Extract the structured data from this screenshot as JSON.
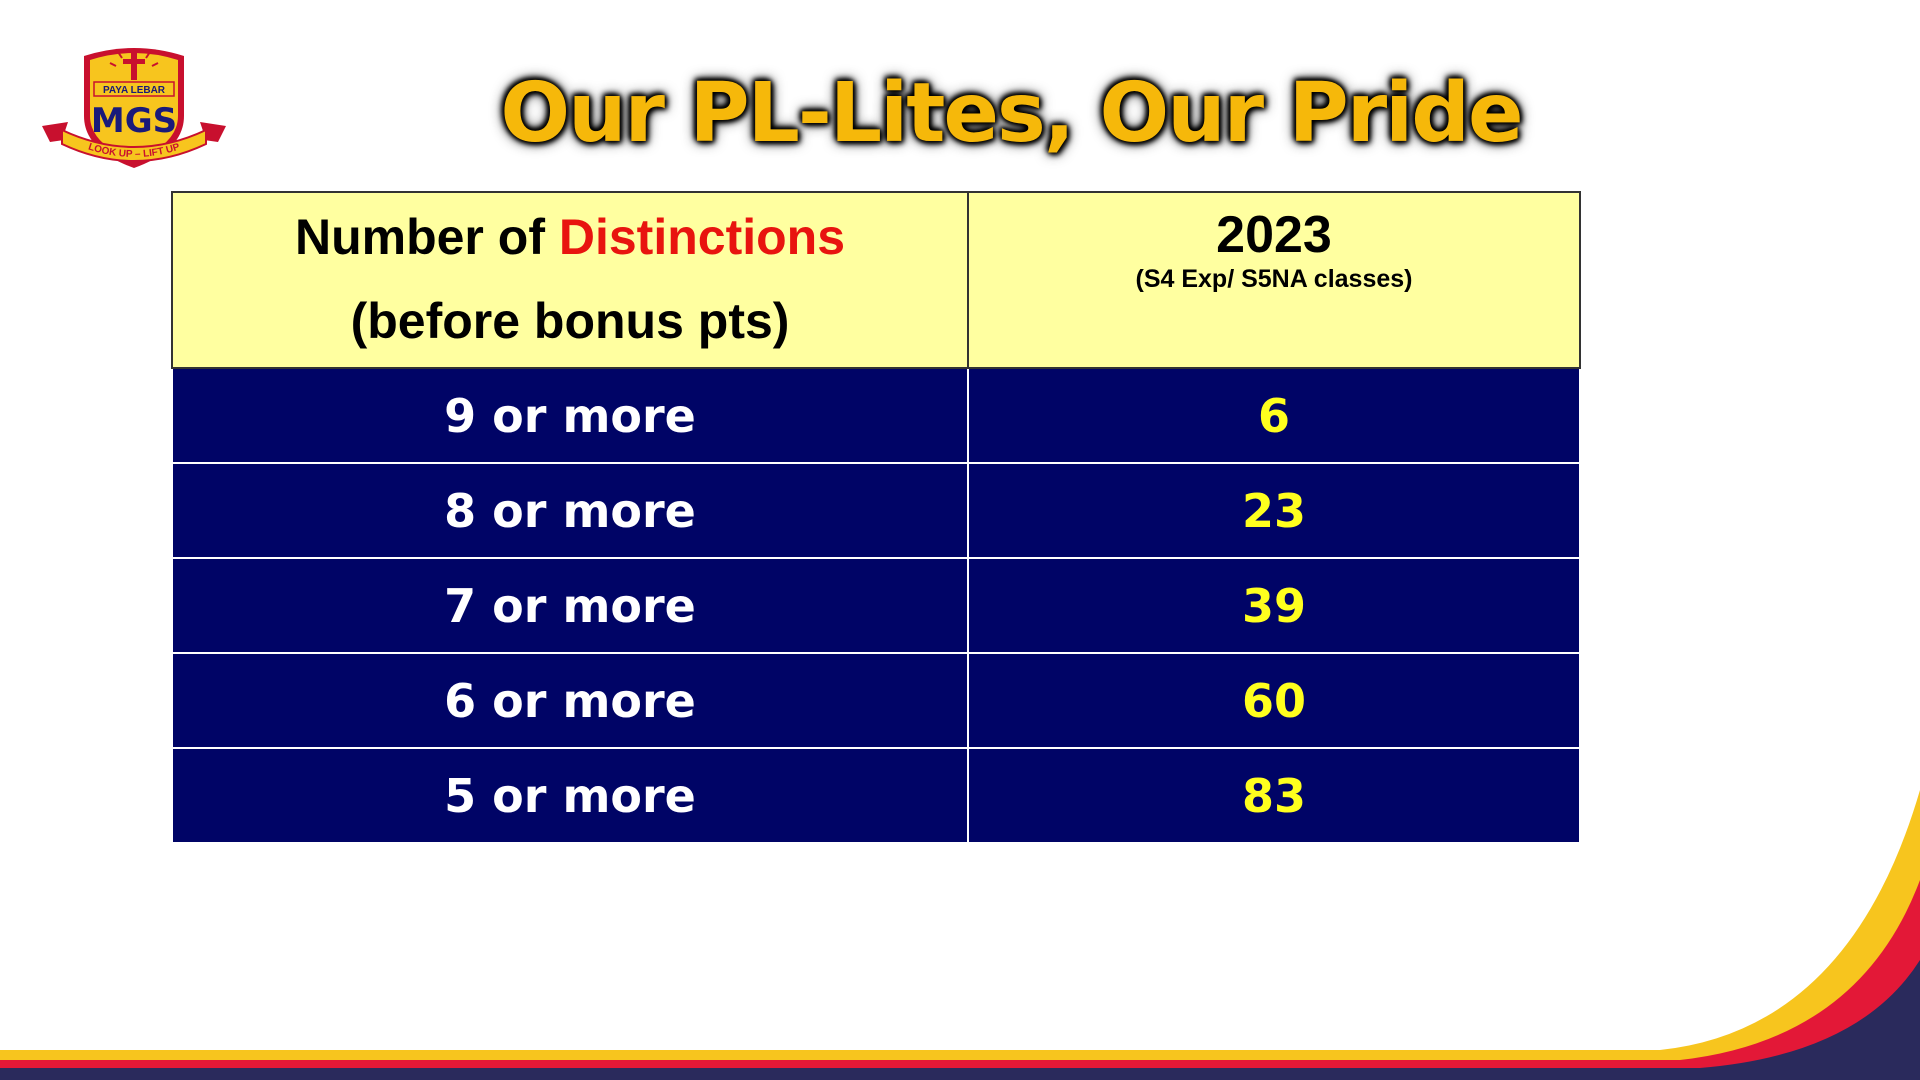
{
  "slide": {
    "title": "Our PL-Lites, Our Pride"
  },
  "logo": {
    "top_text": "PAYA LEBAR",
    "initials": "MGS",
    "motto": "LOOK UP – LIFT UP"
  },
  "table": {
    "header": {
      "col1_part1": "Number of ",
      "col1_highlight": "Distinctions",
      "col1_line2": "(before bonus pts)",
      "col2_year": "2023",
      "col2_sub": "(S4 Exp/ S5NA classes)"
    },
    "rows": [
      {
        "label": "9 or more",
        "value": "6"
      },
      {
        "label": "8 or more",
        "value": "23"
      },
      {
        "label": "7 or more",
        "value": "39"
      },
      {
        "label": "6 or more",
        "value": "60"
      },
      {
        "label": "5 or more",
        "value": "83"
      }
    ]
  },
  "colors": {
    "title": "#f6b80a",
    "header_bg": "#ffffa0",
    "row_bg": "#000466",
    "value_text": "#ffff1e",
    "highlight_red": "#e8140f",
    "swoosh_navy": "#2a2a5c",
    "swoosh_red": "#e31837",
    "swoosh_yellow": "#f7c51e"
  }
}
